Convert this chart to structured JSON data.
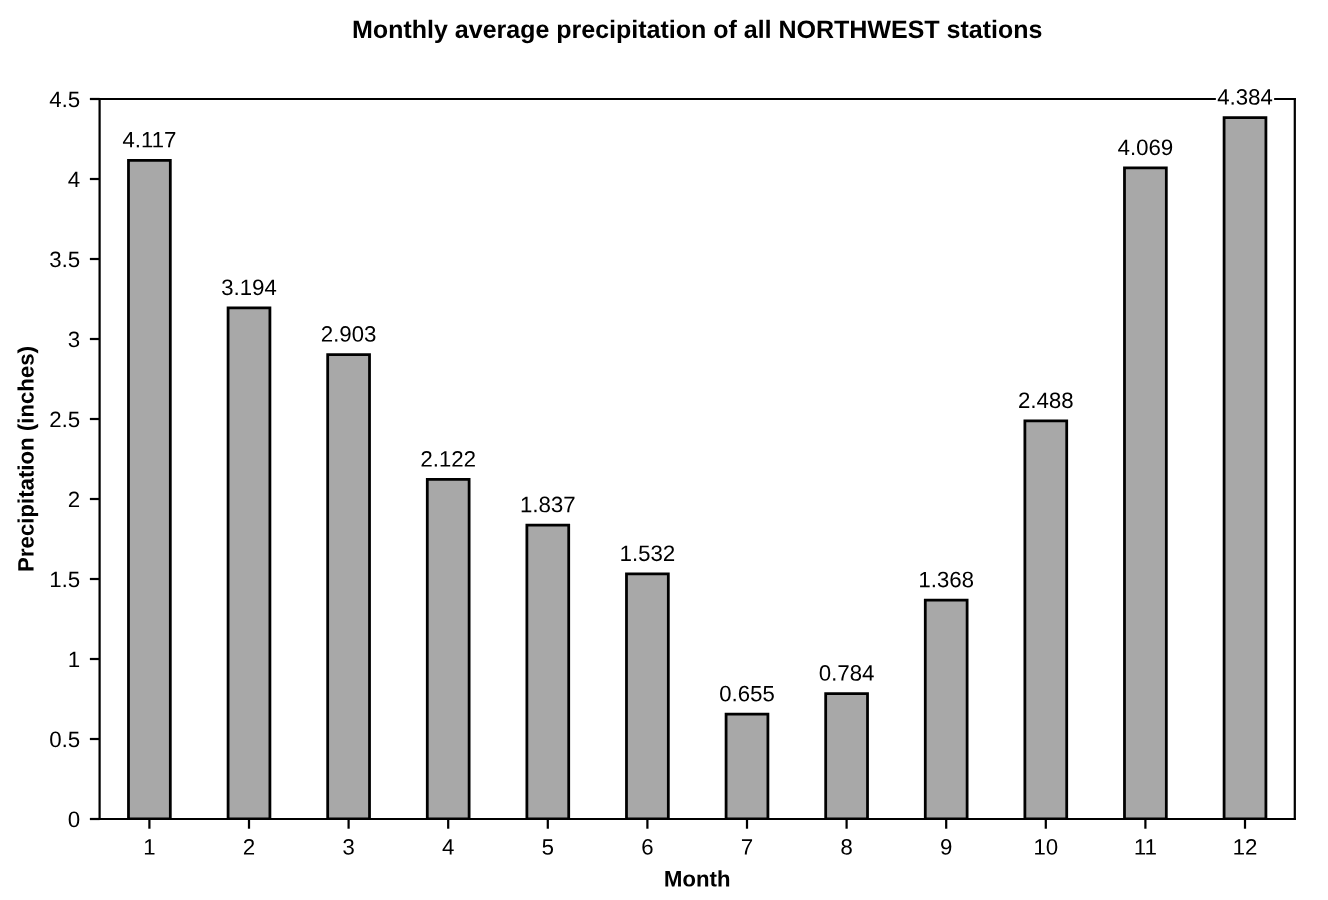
{
  "chart_data": {
    "type": "bar",
    "title": "Monthly average precipitation of all NORTHWEST stations",
    "xlabel": "Month",
    "ylabel": "Precipitation (inches)",
    "categories": [
      "1",
      "2",
      "3",
      "4",
      "5",
      "6",
      "7",
      "8",
      "9",
      "10",
      "11",
      "12"
    ],
    "values": [
      4.117,
      3.194,
      2.903,
      2.122,
      1.837,
      1.532,
      0.655,
      0.784,
      1.368,
      2.488,
      4.069,
      4.384
    ],
    "color": "#a8a8a8",
    "ylim": [
      0,
      4.5
    ],
    "yticks": [
      0,
      0.5,
      1,
      1.5,
      2,
      2.5,
      3,
      3.5,
      4,
      4.5
    ],
    "grid": false,
    "data_labels": true
  }
}
